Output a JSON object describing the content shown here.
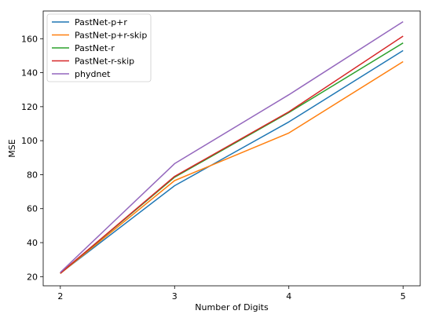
{
  "chart_data": {
    "type": "line",
    "xlabel": "Number of Digits",
    "ylabel": "MSE",
    "x": [
      2,
      3,
      4,
      5
    ],
    "xlim": [
      1.85,
      5.15
    ],
    "ylim": [
      14.6,
      176.3
    ],
    "xticks": [
      2,
      3,
      4,
      5
    ],
    "yticks": [
      20,
      40,
      60,
      80,
      100,
      120,
      140,
      160
    ],
    "grid": false,
    "legend_position": "top-left",
    "series": [
      {
        "name": "PastNet-p+r",
        "color": "#1f77b4",
        "values": [
          22.0,
          73.5,
          111.0,
          153.0
        ]
      },
      {
        "name": "PastNet-p+r-skip",
        "color": "#ff7f0e",
        "values": [
          21.8,
          76.5,
          104.5,
          146.5
        ]
      },
      {
        "name": "PastNet-r",
        "color": "#2ca02c",
        "values": [
          22.0,
          78.5,
          116.5,
          157.5
        ]
      },
      {
        "name": "PastNet-r-skip",
        "color": "#d62728",
        "values": [
          22.0,
          79.0,
          117.0,
          161.5
        ]
      },
      {
        "name": "phydnet",
        "color": "#9467bd",
        "values": [
          22.5,
          86.5,
          127.0,
          170.0
        ]
      }
    ]
  }
}
